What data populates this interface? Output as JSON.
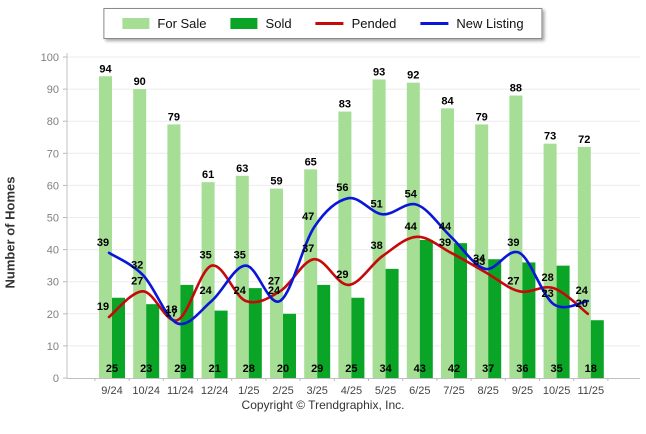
{
  "legend": {
    "items": [
      {
        "label": "For Sale",
        "swatch": "box",
        "color": "#a5de94"
      },
      {
        "label": "Sold",
        "swatch": "box",
        "color": "#0aa426"
      },
      {
        "label": "Pended",
        "swatch": "line",
        "color": "#c40a0a"
      },
      {
        "label": "New Listing",
        "swatch": "line",
        "color": "#0a17d9"
      }
    ]
  },
  "axis": {
    "y_title": "Number of Homes"
  },
  "chart_data": {
    "type": "combo",
    "categories": [
      "9/24",
      "10/24",
      "11/24",
      "12/24",
      "1/25",
      "2/25",
      "3/25",
      "4/25",
      "5/25",
      "6/25",
      "7/25",
      "8/25",
      "9/25",
      "10/25",
      "11/25"
    ],
    "series": [
      {
        "name": "For Sale",
        "type": "bar",
        "color": "#a5de94",
        "values": [
          94,
          90,
          79,
          61,
          63,
          59,
          65,
          83,
          93,
          92,
          84,
          79,
          88,
          73,
          72
        ]
      },
      {
        "name": "Sold",
        "type": "bar",
        "color": "#0aa426",
        "values": [
          25,
          23,
          29,
          21,
          28,
          20,
          29,
          25,
          34,
          43,
          42,
          37,
          36,
          35,
          18
        ]
      },
      {
        "name": "Pended",
        "type": "line",
        "color": "#c40a0a",
        "values": [
          19,
          27,
          18,
          35,
          24,
          27,
          37,
          29,
          38,
          44,
          39,
          33,
          27,
          28,
          20
        ]
      },
      {
        "name": "New Listing",
        "type": "line",
        "color": "#0a17d9",
        "values": [
          39,
          32,
          17,
          24,
          35,
          24,
          47,
          56,
          51,
          54,
          44,
          34,
          39,
          23,
          24
        ]
      }
    ],
    "title": "",
    "xlabel": "",
    "ylabel": "Number of Homes",
    "ylim": [
      0,
      100
    ],
    "yticks": [
      0,
      10,
      20,
      30,
      40,
      50,
      60,
      70,
      80,
      90,
      100
    ],
    "grid": true,
    "legend_position": "top-center"
  },
  "footer": {
    "copyright": "Copyright © Trendgraphix, Inc."
  }
}
